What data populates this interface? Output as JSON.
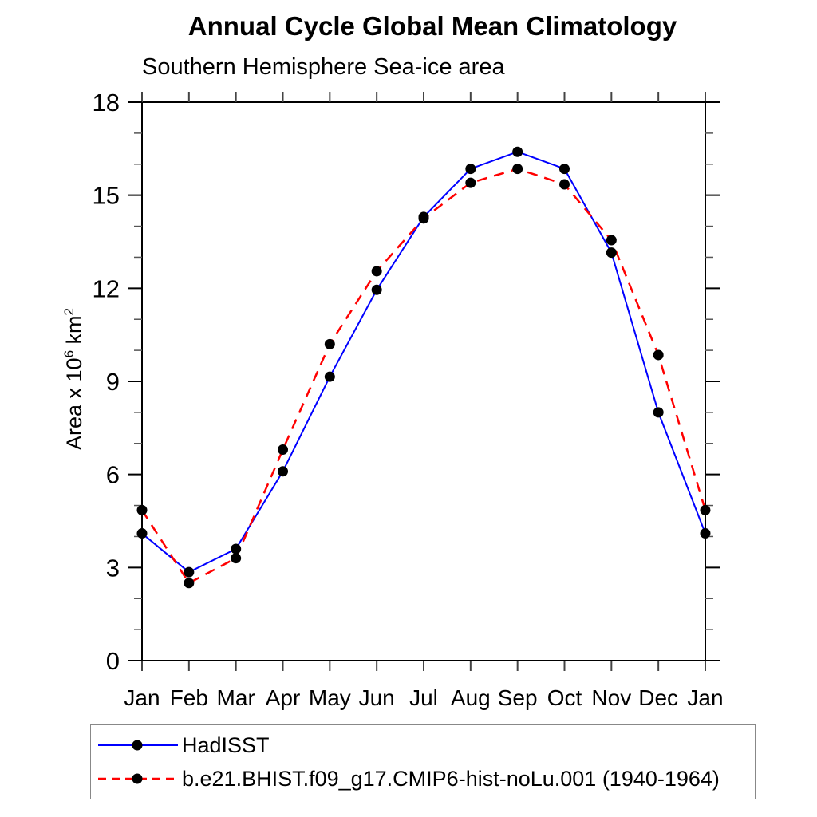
{
  "title": "Annual Cycle Global Mean Climatology",
  "subtitle": "Southern Hemisphere Sea-ice area",
  "y_axis_title": {
    "prefix": "Area x 10",
    "sup1": "6",
    "mid": " km",
    "sup2": "2"
  },
  "chart_data": {
    "type": "line",
    "title": "Annual Cycle Global Mean Climatology",
    "subtitle": "Southern Hemisphere Sea-ice area",
    "xlabel": "",
    "ylabel": "Area x 10^6 km^2",
    "x_labels": [
      "Jan",
      "Feb",
      "Mar",
      "Apr",
      "May",
      "Jun",
      "Jul",
      "Aug",
      "Sep",
      "Oct",
      "Nov",
      "Dec",
      "Jan"
    ],
    "ylim": [
      0,
      18
    ],
    "y_major_ticks": [
      0,
      3,
      6,
      9,
      12,
      15,
      18
    ],
    "y_minor_step": 1,
    "grid": false,
    "legend_position": "bottom-left-box",
    "frame_color": "#000000",
    "marker_color": "#000000",
    "series": [
      {
        "name": "HadISST",
        "color": "#0000ff",
        "style": "solid",
        "marker": "circle",
        "values": [
          4.1,
          2.85,
          3.6,
          6.1,
          9.15,
          11.95,
          14.3,
          15.85,
          16.4,
          15.85,
          13.15,
          8.0,
          4.1
        ]
      },
      {
        "name": "b.e21.BHIST.f09_g17.CMIP6-hist-noLu.001 (1940-1964)",
        "color": "#ff0000",
        "style": "dashed",
        "marker": "circle",
        "values": [
          4.85,
          2.5,
          3.3,
          6.8,
          10.2,
          12.55,
          14.25,
          15.4,
          15.85,
          15.35,
          13.55,
          9.85,
          4.85
        ]
      }
    ]
  }
}
